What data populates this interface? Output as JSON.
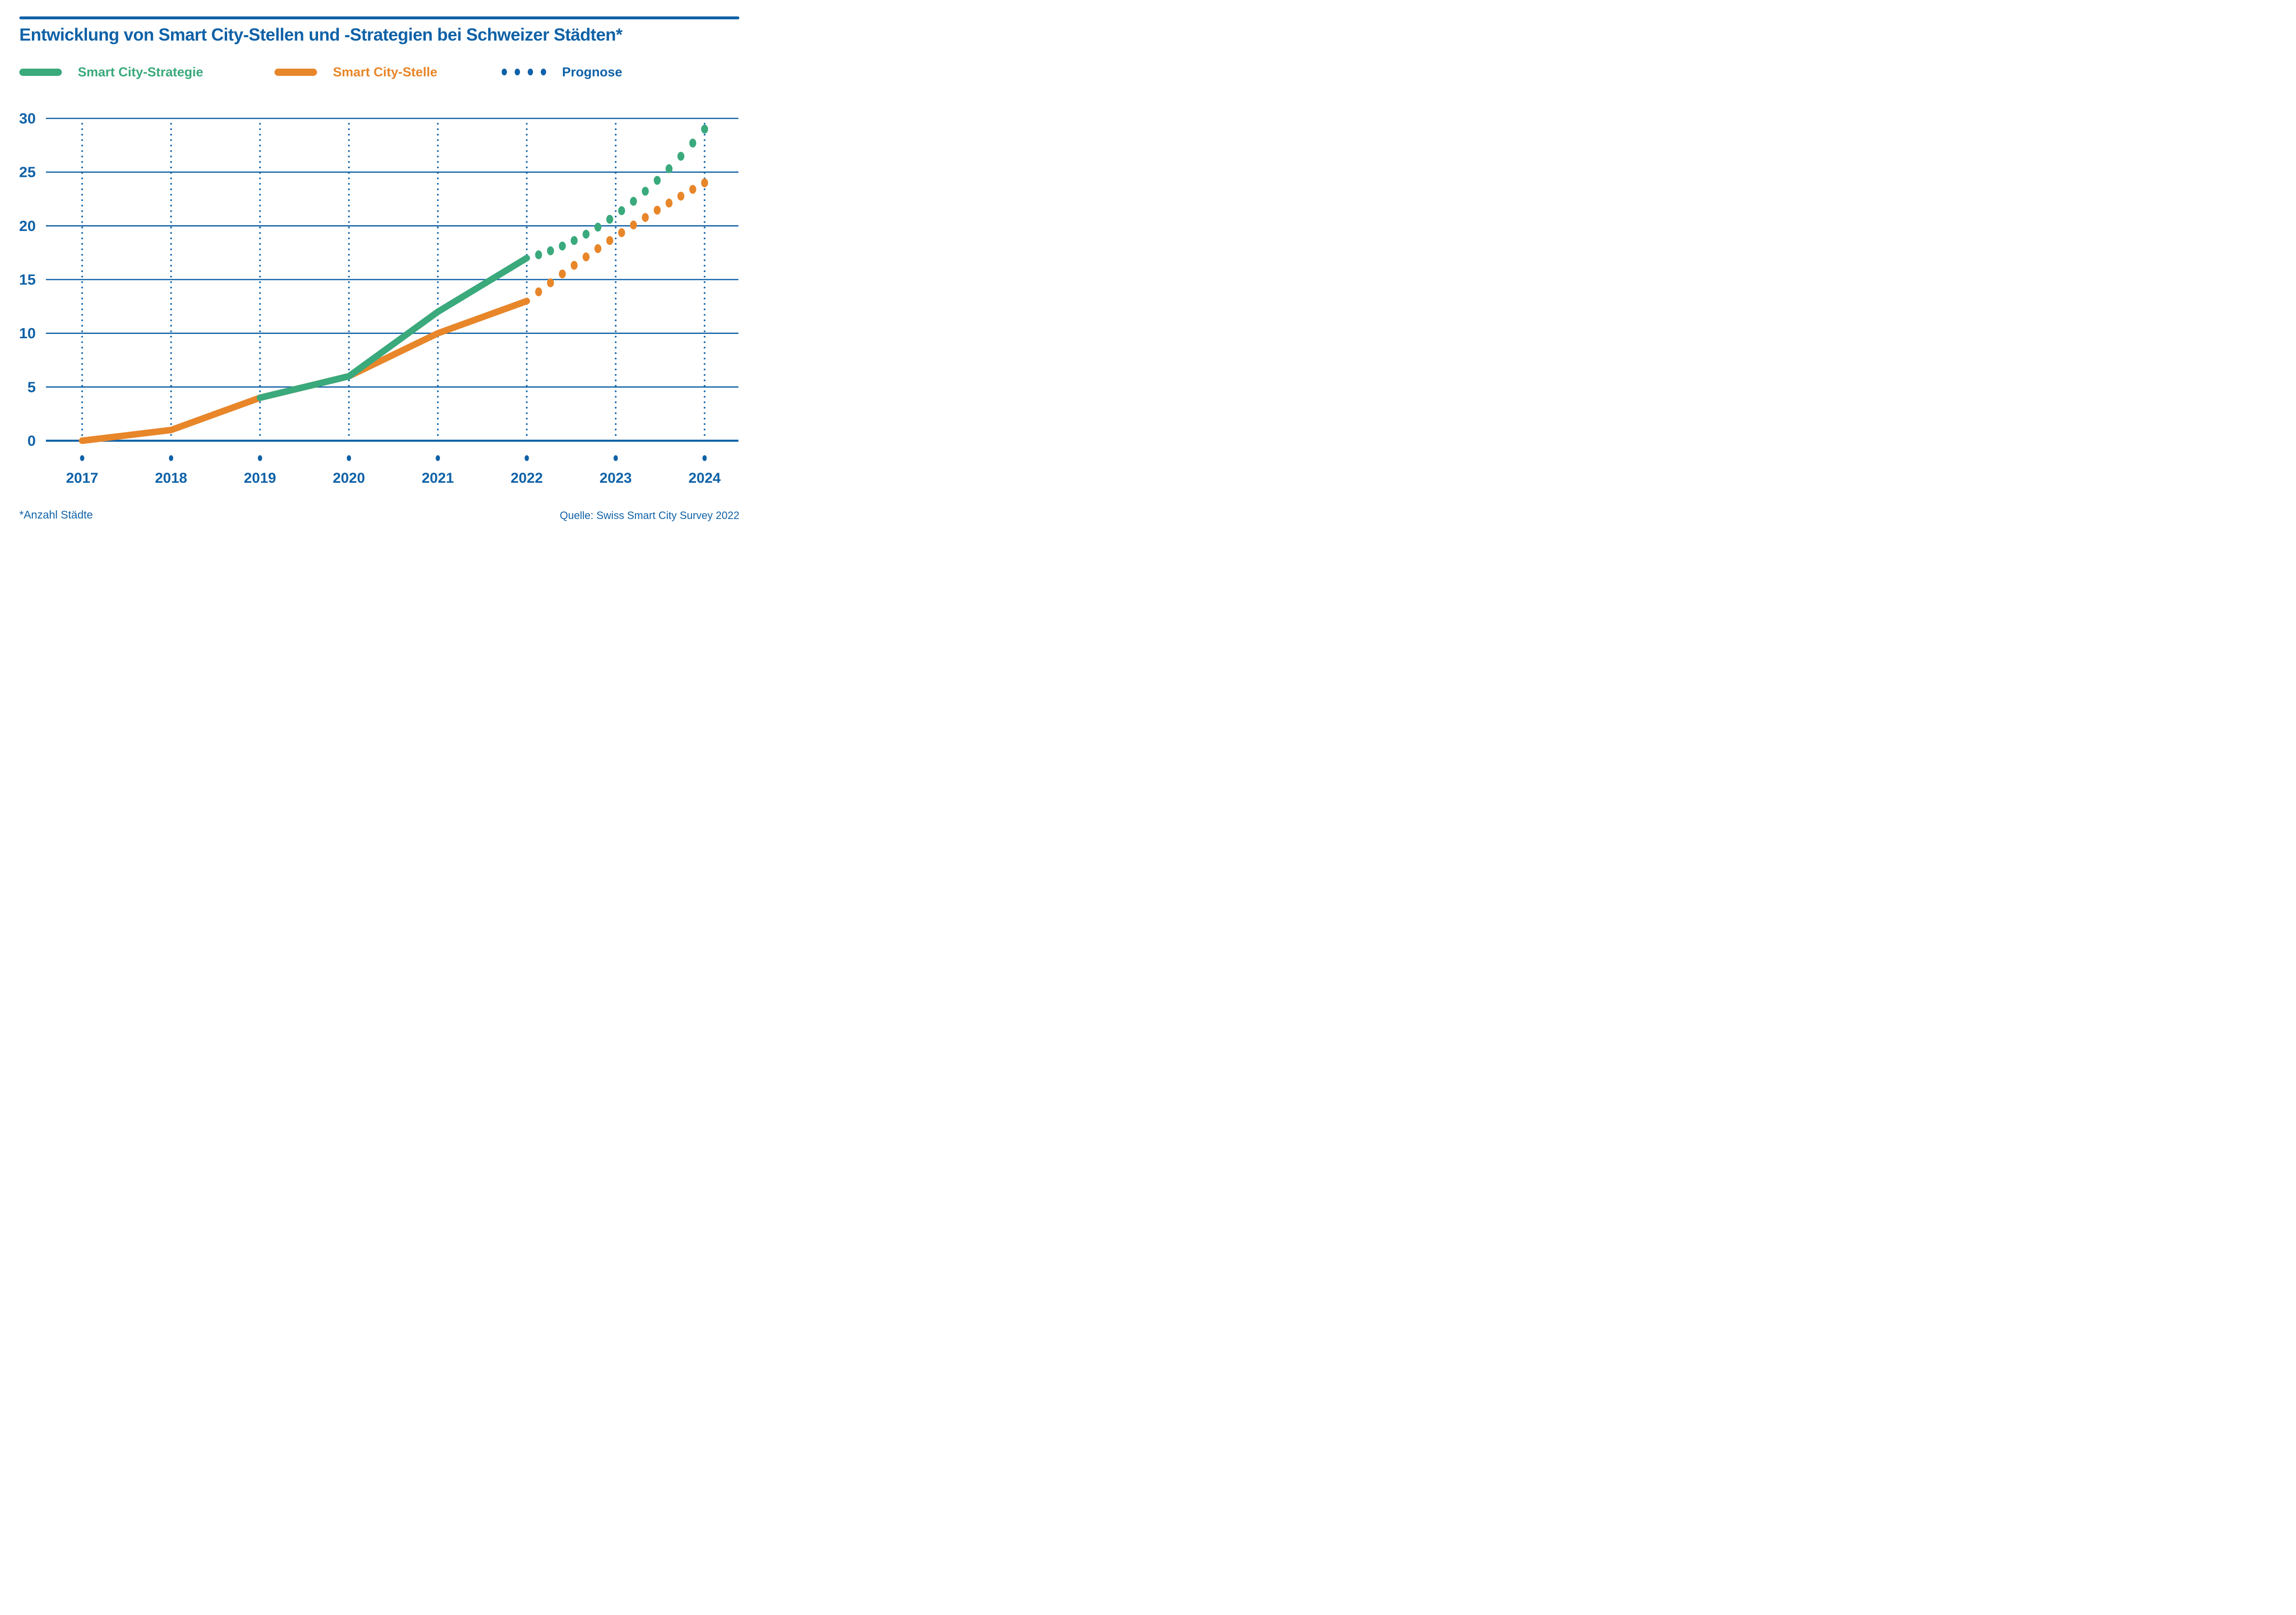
{
  "page": {
    "title": "Entwicklung von Smart City-Stellen und -Strategien bei Schweizer Städten*",
    "footnote": "*Anzahl Städte",
    "source": "Quelle: Swiss Smart City Survey 2022"
  },
  "colors": {
    "blue": "#1062A7",
    "green": "#3AA97C",
    "orange": "#E8862A"
  },
  "legend": {
    "items": [
      {
        "label": "Smart City-Strategie",
        "swatch": "line",
        "color": "green"
      },
      {
        "label": "Smart City-Stelle",
        "swatch": "line",
        "color": "orange"
      },
      {
        "label": "Prognose",
        "swatch": "dots",
        "color": "blue"
      }
    ]
  },
  "chart_data": {
    "type": "line",
    "title": "Entwicklung von Smart City-Stellen und -Strategien bei Schweizer Städten*",
    "x": [
      2017,
      2018,
      2019,
      2020,
      2021,
      2022,
      2023,
      2024
    ],
    "xlabel": "",
    "ylabel": "Anzahl Städte",
    "ylim": [
      0,
      30
    ],
    "yticks": [
      0,
      5,
      10,
      15,
      20,
      25,
      30
    ],
    "grid": "horizontal solid lines + vertical dotted year columns",
    "legend_position": "top",
    "series": [
      {
        "name": "Smart City-Stelle",
        "color": "orange",
        "style": "solid",
        "points": [
          [
            2017,
            0
          ],
          [
            2018,
            1
          ],
          [
            2019,
            4
          ],
          [
            2020,
            6
          ],
          [
            2021,
            10
          ],
          [
            2022,
            13
          ]
        ]
      },
      {
        "name": "Smart City-Strategie",
        "color": "green",
        "style": "solid",
        "points": [
          [
            2019,
            4
          ],
          [
            2020,
            6
          ],
          [
            2021,
            12
          ],
          [
            2022,
            17
          ]
        ]
      },
      {
        "name": "Smart City-Stelle Prognose",
        "color": "orange",
        "style": "dotted",
        "points": [
          [
            2022,
            13
          ],
          [
            2023,
            19
          ],
          [
            2024,
            24
          ]
        ]
      },
      {
        "name": "Smart City-Strategie Prognose",
        "color": "green",
        "style": "dotted",
        "points": [
          [
            2022,
            17
          ],
          [
            2023,
            21
          ],
          [
            2024,
            29
          ]
        ]
      }
    ]
  }
}
